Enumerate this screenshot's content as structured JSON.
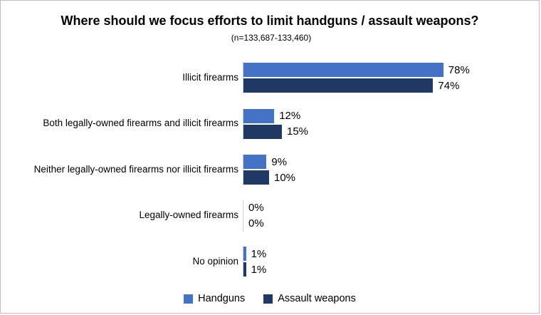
{
  "title": "Where should we focus efforts to limit handguns / assault weapons?",
  "subtitle": "(n=133,687-133,460)",
  "chart_data": {
    "type": "bar",
    "orientation": "horizontal",
    "title": "Where should we focus efforts to limit handguns / assault weapons?",
    "subtitle": "(n=133,687-133,460)",
    "categories": [
      "Illicit firearms",
      "Both legally-owned firearms and illicit firearms",
      "Neither legally-owned firearms nor illicit firearms",
      "Legally-owned firearms",
      "No opinion"
    ],
    "series": [
      {
        "name": "Handguns",
        "color": "#4472C4",
        "values": [
          78,
          12,
          9,
          0,
          1
        ]
      },
      {
        "name": "Assault weapons",
        "color": "#1F3864",
        "values": [
          74,
          15,
          10,
          0,
          1
        ]
      }
    ],
    "value_label_format": "percent",
    "xlim": [
      0,
      100
    ],
    "grid": false,
    "legend_position": "bottom"
  }
}
